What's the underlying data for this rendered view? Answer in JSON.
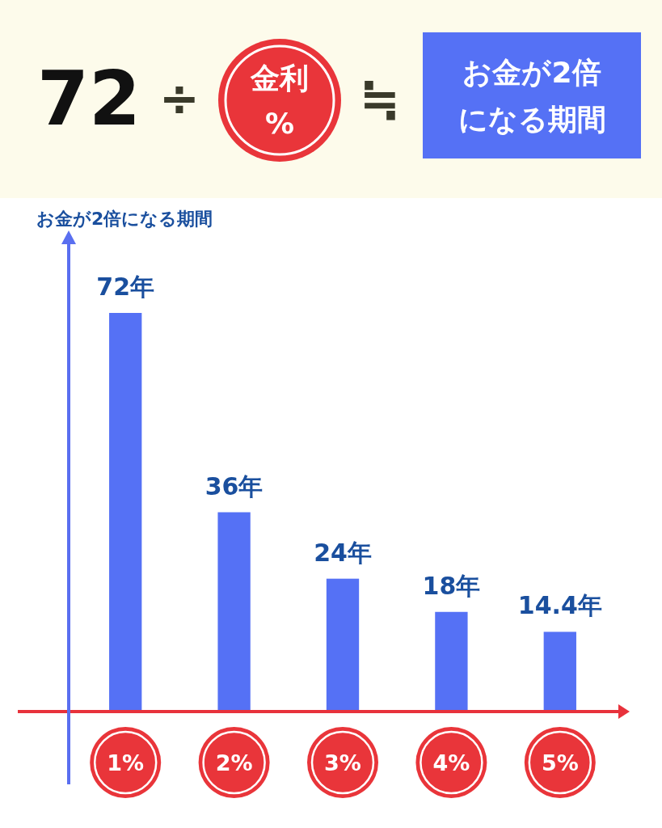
{
  "chart_data": {
    "type": "bar",
    "ylabel": "お金が2倍になる期間",
    "categories": [
      "1%",
      "2%",
      "3%",
      "4%",
      "5%"
    ],
    "values": [
      72,
      36,
      24,
      18,
      14.4
    ],
    "color": "#5571f5",
    "value_labels": [
      "72年",
      "36年",
      "24年",
      "18年",
      "14.4年"
    ],
    "annotations": [
      "72",
      "÷",
      "金利",
      "%",
      "≒",
      "お金が2倍",
      "になる期間"
    ]
  }
}
